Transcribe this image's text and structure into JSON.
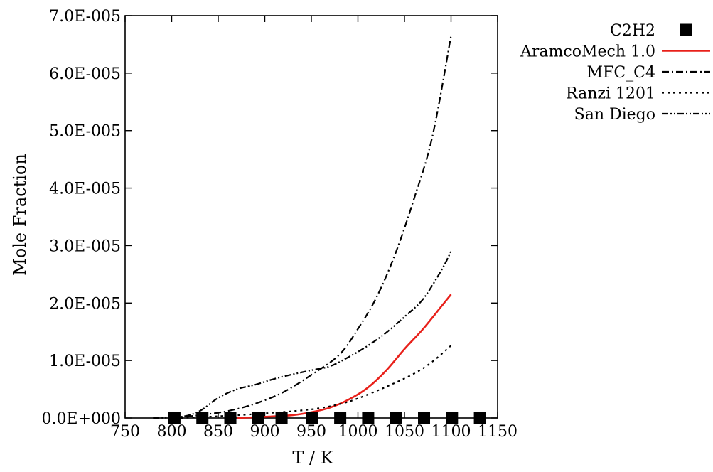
{
  "chart_data": {
    "type": "line",
    "xlabel": "T / K",
    "ylabel": "Mole Fraction",
    "xlim": [
      750,
      1150
    ],
    "ylim": [
      0,
      7e-05
    ],
    "xticks": [
      "750",
      "800",
      "850",
      "900",
      "950",
      "1000",
      "1050",
      "1100",
      "1150"
    ],
    "yticks": [
      "0.0E+000",
      "1.0E-005",
      "2.0E-005",
      "3.0E-005",
      "4.0E-005",
      "5.0E-005",
      "6.0E-005",
      "7.0E-005"
    ],
    "grid": false,
    "legend_position": "outside-top-right",
    "series": [
      {
        "name": "C2H2",
        "kind": "marker",
        "marker": "square",
        "color": "#000000",
        "x": [
          803,
          833,
          863,
          893,
          918,
          951,
          981,
          1011,
          1041,
          1071,
          1101,
          1131
        ],
        "y": [
          0,
          0,
          0,
          0,
          0,
          0,
          0,
          0,
          0,
          0,
          0,
          0
        ]
      },
      {
        "name": "AramcoMech 1.0",
        "kind": "line",
        "dash": "solid",
        "color": "#e8201a",
        "x": [
          870,
          900,
          930,
          950,
          970,
          990,
          1010,
          1030,
          1050,
          1070,
          1090,
          1100
        ],
        "y": [
          0,
          2e-07,
          5e-07,
          1e-06,
          1.8e-06,
          3.2e-06,
          5.2e-06,
          8.2e-06,
          1.2e-05,
          1.55e-05,
          1.95e-05,
          2.15e-05
        ]
      },
      {
        "name": "MFC_C4",
        "kind": "line",
        "dash": "dash-dot",
        "color": "#000000",
        "x": [
          800,
          830,
          860,
          890,
          920,
          950,
          980,
          1000,
          1020,
          1040,
          1060,
          1080,
          1100
        ],
        "y": [
          0,
          5e-07,
          1.2e-06,
          2.5e-06,
          4.5e-06,
          7.5e-06,
          1.1e-05,
          1.55e-05,
          2.1e-05,
          2.85e-05,
          3.8e-05,
          4.9e-05,
          6.65e-05
        ]
      },
      {
        "name": "Ranzi 1201",
        "kind": "line",
        "dash": "dotted",
        "color": "#000000",
        "x": [
          810,
          850,
          900,
          950,
          980,
          1000,
          1030,
          1060,
          1080,
          1100
        ],
        "y": [
          0,
          3e-07,
          8e-07,
          1.5e-06,
          2.4e-06,
          3.4e-06,
          5.4e-06,
          7.7e-06,
          9.8e-06,
          1.26e-05
        ]
      },
      {
        "name": "San Diego",
        "kind": "line",
        "dash": "dash-dot-dot",
        "color": "#000000",
        "x": [
          780,
          810,
          830,
          850,
          870,
          890,
          910,
          930,
          950,
          970,
          990,
          1010,
          1030,
          1050,
          1070,
          1090,
          1100
        ],
        "y": [
          0,
          2e-07,
          1.2e-06,
          3.5e-06,
          5e-06,
          5.8e-06,
          6.8e-06,
          7.6e-06,
          8.3e-06,
          9e-06,
          1.06e-05,
          1.25e-05,
          1.48e-05,
          1.76e-05,
          2.07e-05,
          2.58e-05,
          2.9e-05
        ]
      }
    ]
  }
}
